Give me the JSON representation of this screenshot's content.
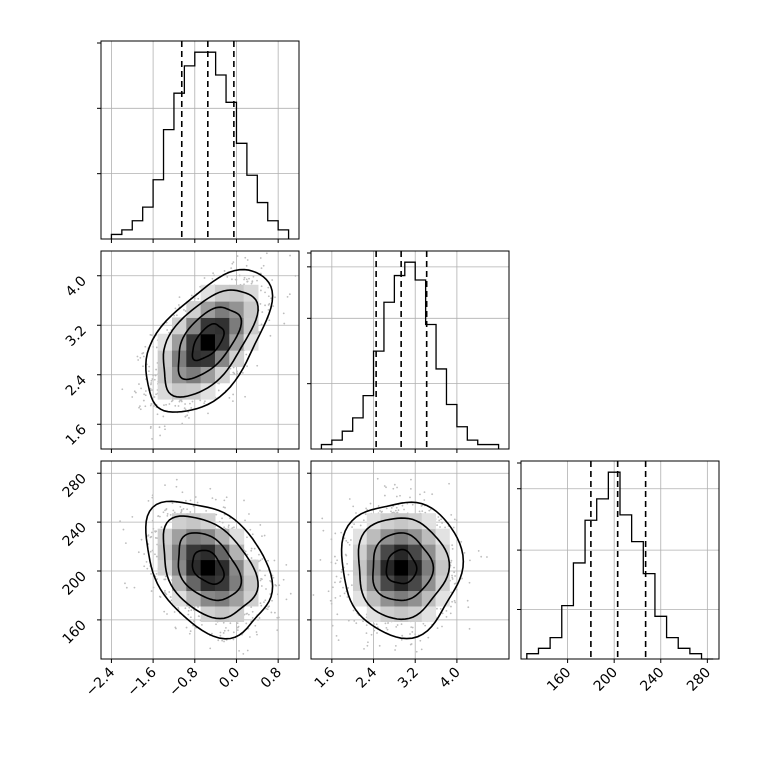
{
  "figure": {
    "title": ""
  },
  "chart_data": [
    {
      "type": "histogram",
      "panel": "1D marginal, parameter 1",
      "xlim": [
        -2.6,
        1.2
      ],
      "bin_edges": [
        -2.4,
        -2.2,
        -2.0,
        -1.8,
        -1.6,
        -1.4,
        -1.2,
        -1.0,
        -0.8,
        -0.6,
        -0.4,
        -0.2,
        0.0,
        0.2,
        0.4,
        0.6,
        0.8,
        1.0
      ],
      "counts": [
        1,
        2,
        4,
        7,
        13,
        24,
        32,
        38,
        41,
        41,
        36,
        30,
        21,
        14,
        8,
        4,
        2
      ],
      "quantiles": [
        -1.05,
        -0.55,
        -0.05
      ],
      "grid": true,
      "ytick_labels": []
    },
    {
      "type": "histogram",
      "panel": "1D marginal, parameter 2",
      "xlim": [
        1.2,
        5.0
      ],
      "bin_edges": [
        1.4,
        1.6,
        1.8,
        2.0,
        2.2,
        2.4,
        2.6,
        2.8,
        3.0,
        3.2,
        3.4,
        3.6,
        3.8,
        4.0,
        4.2,
        4.4,
        4.6,
        4.8
      ],
      "counts": [
        1,
        2,
        4,
        7,
        12,
        22,
        33,
        39,
        42,
        38,
        28,
        18,
        10,
        5,
        2,
        1,
        1
      ],
      "quantiles": [
        2.45,
        2.93,
        3.42
      ],
      "grid": true,
      "ytick_labels": []
    },
    {
      "type": "histogram",
      "panel": "1D marginal, parameter 3",
      "xlim": [
        120,
        290
      ],
      "bin_edges": [
        125,
        135,
        145,
        155,
        165,
        175,
        185,
        195,
        205,
        215,
        225,
        235,
        245,
        255,
        265,
        275,
        285
      ],
      "counts": [
        1,
        2,
        4,
        10,
        18,
        26,
        30,
        35,
        27,
        22,
        16,
        8,
        4,
        2,
        1,
        0
      ],
      "quantiles": [
        180,
        203,
        227
      ],
      "grid": true,
      "ytick_labels": []
    },
    {
      "type": "heatmap",
      "panel": "2D, parameter 1 vs parameter 2",
      "x": "parameter 1",
      "y": "parameter 2",
      "xlim": [
        -2.6,
        1.2
      ],
      "ylim": [
        1.2,
        4.4
      ],
      "center": [
        -0.55,
        2.93
      ],
      "sigma": [
        0.5,
        0.48
      ],
      "correlation": 0.55,
      "grid": true,
      "ytick_labels": [
        "1.6",
        "2.4",
        "3.2",
        "4.0"
      ],
      "ytick_values": [
        1.6,
        2.4,
        3.2,
        4.0
      ]
    },
    {
      "type": "heatmap",
      "panel": "2D, parameter 1 vs parameter 3",
      "x": "parameter 1",
      "y": "parameter 3",
      "xlim": [
        -2.6,
        1.2
      ],
      "ylim": [
        128,
        290
      ],
      "center": [
        -0.55,
        203
      ],
      "sigma": [
        0.5,
        23
      ],
      "correlation": -0.35,
      "grid": true,
      "ytick_labels": [
        "160",
        "200",
        "240",
        "280"
      ],
      "ytick_values": [
        160,
        200,
        240,
        280
      ],
      "xtick_labels": [
        "−2.4",
        "−1.6",
        "−0.8",
        "0.0",
        "0.8"
      ],
      "xtick_values": [
        -2.4,
        -1.6,
        -0.8,
        0.0,
        0.8
      ]
    },
    {
      "type": "heatmap",
      "panel": "2D, parameter 2 vs parameter 3",
      "x": "parameter 2",
      "y": "parameter 3",
      "xlim": [
        1.2,
        5.0
      ],
      "ylim": [
        128,
        290
      ],
      "center": [
        2.93,
        203
      ],
      "sigma": [
        0.48,
        23
      ],
      "correlation": 0.0,
      "grid": true,
      "xtick_labels": [
        "1.6",
        "2.4",
        "3.2",
        "4.0"
      ],
      "xtick_values": [
        1.6,
        2.4,
        3.2,
        4.0
      ]
    },
    {
      "type": "axis",
      "panel": "x-axis, parameter 3",
      "xtick_labels": [
        "160",
        "200",
        "240",
        "280"
      ],
      "xtick_values": [
        160,
        200,
        240,
        280
      ]
    }
  ]
}
